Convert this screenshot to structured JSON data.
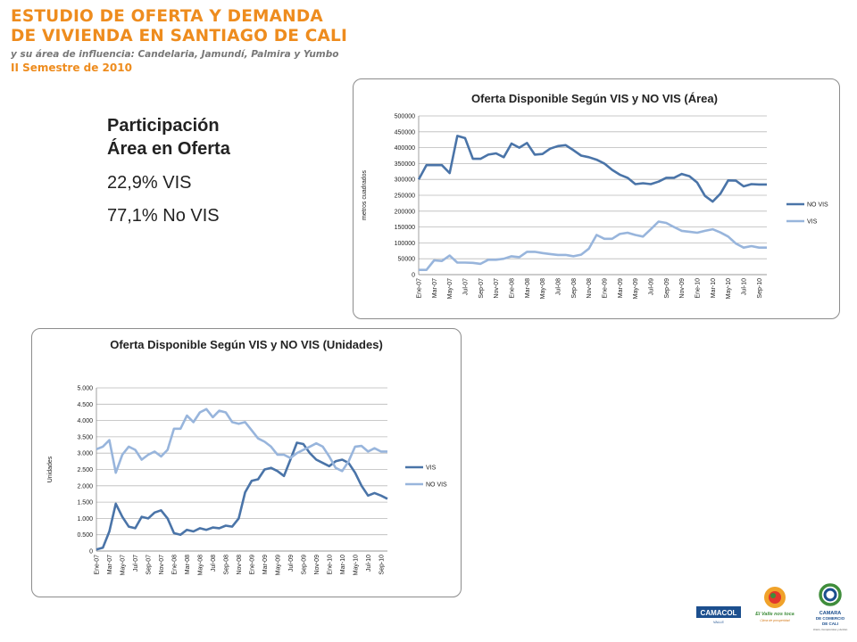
{
  "header": {
    "title_line1": "ESTUDIO DE OFERTA Y DEMANDA",
    "title_line2": "DE VIVIENDA EN SANTIAGO DE CALI",
    "subtitle": "y su área de influencia: Candelaria, Jamundí, Palmira y Yumbo",
    "semester": "II Semestre de 2010"
  },
  "participacion": {
    "title_line1": "Participación",
    "title_line2": "Área en Oferta",
    "vis": "22,9% VIS",
    "novis": "77,1% No VIS"
  },
  "logos": {
    "camacol": "CAMACOL",
    "camacol_sub": "VALLE",
    "valle": "El Valle nos toca",
    "valle_sub": "Clima de prosperidad",
    "camara1": "CAMARA",
    "camara2": "DE COMERCIO",
    "camara3": "DE CALI",
    "camara_sub": "Unión, Compromiso y Acción"
  },
  "chart_data": [
    {
      "type": "line",
      "title": "Oferta Disponible Según VIS y NO VIS (Área)",
      "ylabel": "metros cuadrados",
      "ylim": [
        0,
        500000
      ],
      "yticks": [
        0,
        50000,
        100000,
        150000,
        200000,
        250000,
        300000,
        350000,
        400000,
        450000,
        500000
      ],
      "ytick_labels": [
        "0",
        "50000",
        "100000",
        "150000",
        "200000",
        "250000",
        "300000",
        "350000",
        "400000",
        "450000",
        "500000"
      ],
      "xtick_labels": [
        "Ene-07",
        "Mar-07",
        "May-07",
        "Jul-07",
        "Sep-07",
        "Nov-07",
        "Ene-08",
        "Mar-08",
        "May-08",
        "Jul-08",
        "Sep-08",
        "Nov-08",
        "Ene-09",
        "Mar-09",
        "May-09",
        "Jul-09",
        "Sep-09",
        "Nov-09",
        "Ene-10",
        "Mar-10",
        "May-10",
        "Jul-10",
        "Sep-10"
      ],
      "x": [
        "Ene-07",
        "Feb-07",
        "Mar-07",
        "Abr-07",
        "May-07",
        "Jun-07",
        "Jul-07",
        "Ago-07",
        "Sep-07",
        "Oct-07",
        "Nov-07",
        "Dic-07",
        "Ene-08",
        "Feb-08",
        "Mar-08",
        "Abr-08",
        "May-08",
        "Jun-08",
        "Jul-08",
        "Ago-08",
        "Sep-08",
        "Oct-08",
        "Nov-08",
        "Dic-08",
        "Ene-09",
        "Feb-09",
        "Mar-09",
        "Abr-09",
        "May-09",
        "Jun-09",
        "Jul-09",
        "Ago-09",
        "Sep-09",
        "Oct-09",
        "Nov-09",
        "Dic-09",
        "Ene-10",
        "Feb-10",
        "Mar-10",
        "Abr-10",
        "May-10",
        "Jun-10",
        "Jul-10",
        "Ago-10",
        "Sep-10",
        "Oct-10"
      ],
      "legend_position": "right",
      "series": [
        {
          "name": "NO VIS",
          "color": "#4a74a8",
          "values": [
            300000,
            345000,
            345000,
            345000,
            320000,
            437000,
            430000,
            365000,
            365000,
            378000,
            382000,
            370000,
            413000,
            400000,
            415000,
            378000,
            380000,
            397000,
            405000,
            408000,
            392000,
            375000,
            370000,
            362000,
            350000,
            330000,
            315000,
            305000,
            285000,
            288000,
            285000,
            293000,
            305000,
            305000,
            317000,
            310000,
            290000,
            248000,
            230000,
            255000,
            297000,
            296000,
            278000,
            285000,
            284000,
            284000
          ]
        },
        {
          "name": "VIS",
          "color": "#98b5dc",
          "values": [
            15000,
            15000,
            45000,
            43000,
            60000,
            38000,
            38000,
            37000,
            34000,
            47000,
            47000,
            50000,
            58000,
            55000,
            72000,
            72000,
            68000,
            65000,
            62000,
            62000,
            58000,
            63000,
            82000,
            125000,
            113000,
            113000,
            128000,
            132000,
            125000,
            120000,
            143000,
            167000,
            163000,
            150000,
            138000,
            135000,
            132000,
            138000,
            143000,
            133000,
            120000,
            98000,
            85000,
            90000,
            85000,
            85000
          ]
        }
      ]
    },
    {
      "type": "line",
      "title": "Oferta Disponible Según VIS y NO VIS (Unidades)",
      "ylabel": "Unidades",
      "ylim": [
        0,
        5000
      ],
      "yticks": [
        0,
        500,
        1000,
        1500,
        2000,
        2500,
        3000,
        3500,
        4000,
        4500,
        5000
      ],
      "ytick_labels": [
        "0",
        "0.500",
        "1.000",
        "1.500",
        "2.000",
        "2.500",
        "3.000",
        "3.500",
        "4.000",
        "4.500",
        "5.000"
      ],
      "xtick_labels": [
        "Ene-07",
        "Mar-07",
        "May-07",
        "Jul-07",
        "Sep-07",
        "Nov-07",
        "Ene-08",
        "Mar-08",
        "May-08",
        "Jul-08",
        "Sep-08",
        "Nov-08",
        "Ene-09",
        "Mar-09",
        "May-09",
        "Jul-09",
        "Sep-09",
        "Nov-09",
        "Ene-10",
        "Mar-10",
        "May-10",
        "Jul-10",
        "Sep-10"
      ],
      "x": [
        "Ene-07",
        "Feb-07",
        "Mar-07",
        "Abr-07",
        "May-07",
        "Jun-07",
        "Jul-07",
        "Ago-07",
        "Sep-07",
        "Oct-07",
        "Nov-07",
        "Dic-07",
        "Ene-08",
        "Feb-08",
        "Mar-08",
        "Abr-08",
        "May-08",
        "Jun-08",
        "Jul-08",
        "Ago-08",
        "Sep-08",
        "Oct-08",
        "Nov-08",
        "Dic-08",
        "Ene-09",
        "Feb-09",
        "Mar-09",
        "Abr-09",
        "May-09",
        "Jun-09",
        "Jul-09",
        "Ago-09",
        "Sep-09",
        "Oct-09",
        "Nov-09",
        "Dic-09",
        "Ene-10",
        "Feb-10",
        "Mar-10",
        "Abr-10",
        "May-10",
        "Jun-10",
        "Jul-10",
        "Ago-10",
        "Sep-10",
        "Oct-10"
      ],
      "legend_position": "right",
      "series": [
        {
          "name": "VIS",
          "color": "#4a74a8",
          "values": [
            50,
            100,
            600,
            1450,
            1050,
            750,
            700,
            1050,
            1000,
            1180,
            1250,
            1000,
            550,
            500,
            650,
            600,
            700,
            650,
            720,
            700,
            780,
            750,
            1000,
            1800,
            2150,
            2200,
            2500,
            2550,
            2450,
            2300,
            2800,
            3320,
            3280,
            3000,
            2800,
            2700,
            2600,
            2750,
            2800,
            2700,
            2400,
            2000,
            1700,
            1780,
            1700,
            1600
          ]
        },
        {
          "name": "NO VIS",
          "color": "#98b5dc",
          "values": [
            3120,
            3200,
            3400,
            2400,
            2950,
            3200,
            3100,
            2800,
            2950,
            3050,
            2900,
            3100,
            3750,
            3750,
            4150,
            3950,
            4250,
            4350,
            4100,
            4300,
            4250,
            3950,
            3900,
            3950,
            3700,
            3450,
            3350,
            3200,
            2950,
            2950,
            2850,
            3000,
            3100,
            3200,
            3300,
            3200,
            2900,
            2550,
            2450,
            2750,
            3200,
            3220,
            3050,
            3150,
            3050,
            3050
          ]
        }
      ]
    }
  ]
}
